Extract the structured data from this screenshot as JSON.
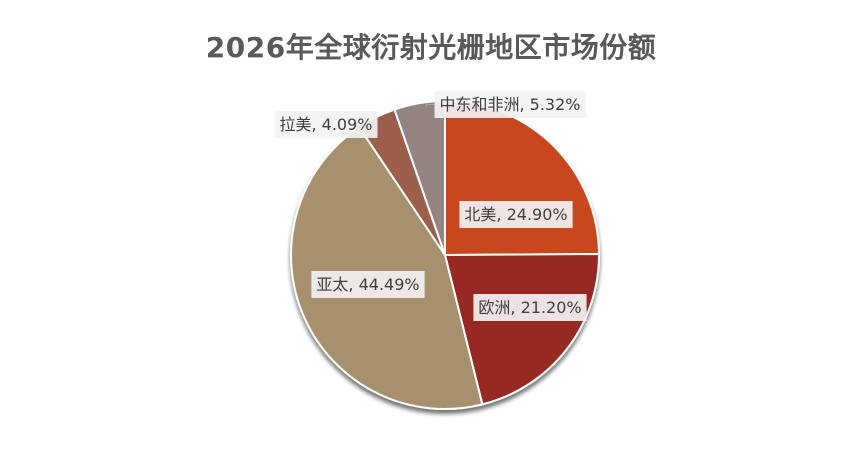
{
  "chart_data": {
    "type": "pie",
    "title": "2026年全球衍射光栅地区市场份额",
    "slices": [
      {
        "label": "北美",
        "value": 24.9,
        "display": "北美, 24.90%",
        "color": "#c8461c"
      },
      {
        "label": "欧洲",
        "value": 21.2,
        "display": "欧洲, 21.20%",
        "color": "#962a22"
      },
      {
        "label": "亚太",
        "value": 44.49,
        "display": "亚太, 44.49%",
        "color": "#a6906e"
      },
      {
        "label": "拉美",
        "value": 4.09,
        "display": "拉美, 4.09%",
        "color": "#9c5e4c"
      },
      {
        "label": "中东和非洲",
        "value": 5.32,
        "display": "中东和非洲, 5.32%",
        "color": "#938482"
      }
    ],
    "legend": "none",
    "start_angle": "12 o'clock",
    "direction": "clockwise"
  }
}
